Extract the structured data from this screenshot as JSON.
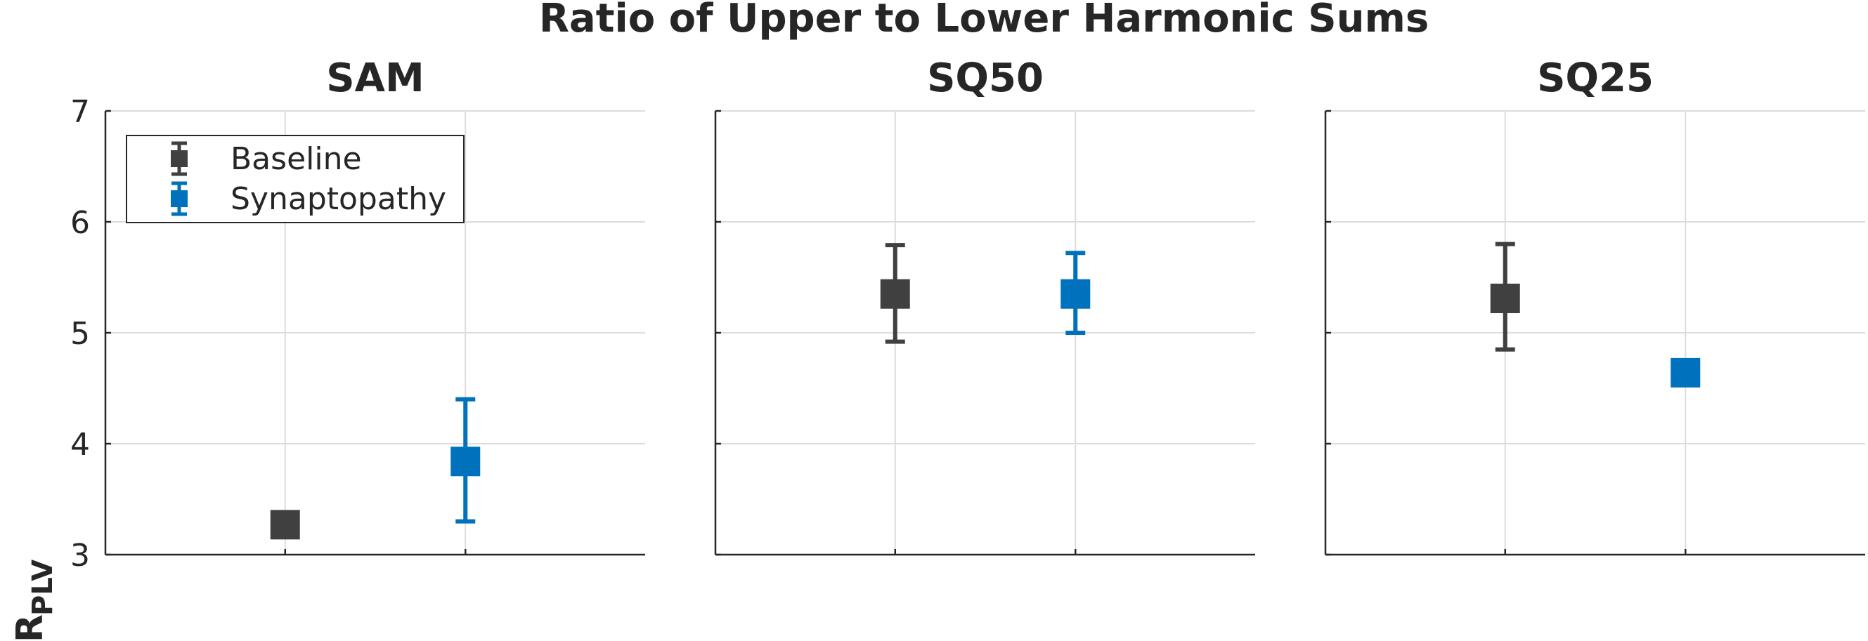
{
  "title": "Ratio of Upper to Lower Harmonic Sums",
  "ylabel_main": "R",
  "ylabel_sub": "PLV",
  "legend": {
    "placement": "top-left",
    "entries": [
      {
        "label": "Baseline",
        "color": "#404040"
      },
      {
        "label": "Synaptopathy",
        "color": "#0072BD"
      }
    ]
  },
  "chart_data": [
    {
      "type": "scatter",
      "title": "SAM",
      "ylim": [
        3,
        7
      ],
      "yticks": [
        3,
        4,
        5,
        6,
        7
      ],
      "grid": true,
      "series": [
        {
          "name": "Baseline",
          "color": "#404040",
          "x": 1,
          "y": 3.27,
          "err_low": null,
          "err_high": null
        },
        {
          "name": "Synaptopathy",
          "color": "#0072BD",
          "x": 2,
          "y": 3.84,
          "err_low": 3.3,
          "err_high": 4.4
        }
      ]
    },
    {
      "type": "scatter",
      "title": "SQ50",
      "ylim": [
        3,
        7
      ],
      "yticks": [
        3,
        4,
        5,
        6,
        7
      ],
      "grid": true,
      "series": [
        {
          "name": "Baseline",
          "color": "#404040",
          "x": 1,
          "y": 5.35,
          "err_low": 4.92,
          "err_high": 5.79
        },
        {
          "name": "Synaptopathy",
          "color": "#0072BD",
          "x": 2,
          "y": 5.35,
          "err_low": 5.0,
          "err_high": 5.72
        }
      ]
    },
    {
      "type": "scatter",
      "title": "SQ25",
      "ylim": [
        3,
        7
      ],
      "yticks": [
        3,
        4,
        5,
        6,
        7
      ],
      "grid": true,
      "series": [
        {
          "name": "Baseline",
          "color": "#404040",
          "x": 1,
          "y": 5.31,
          "err_low": 4.85,
          "err_high": 5.8
        },
        {
          "name": "Synaptopathy",
          "color": "#0072BD",
          "x": 2,
          "y": 4.64,
          "err_low": null,
          "err_high": null
        }
      ]
    }
  ]
}
